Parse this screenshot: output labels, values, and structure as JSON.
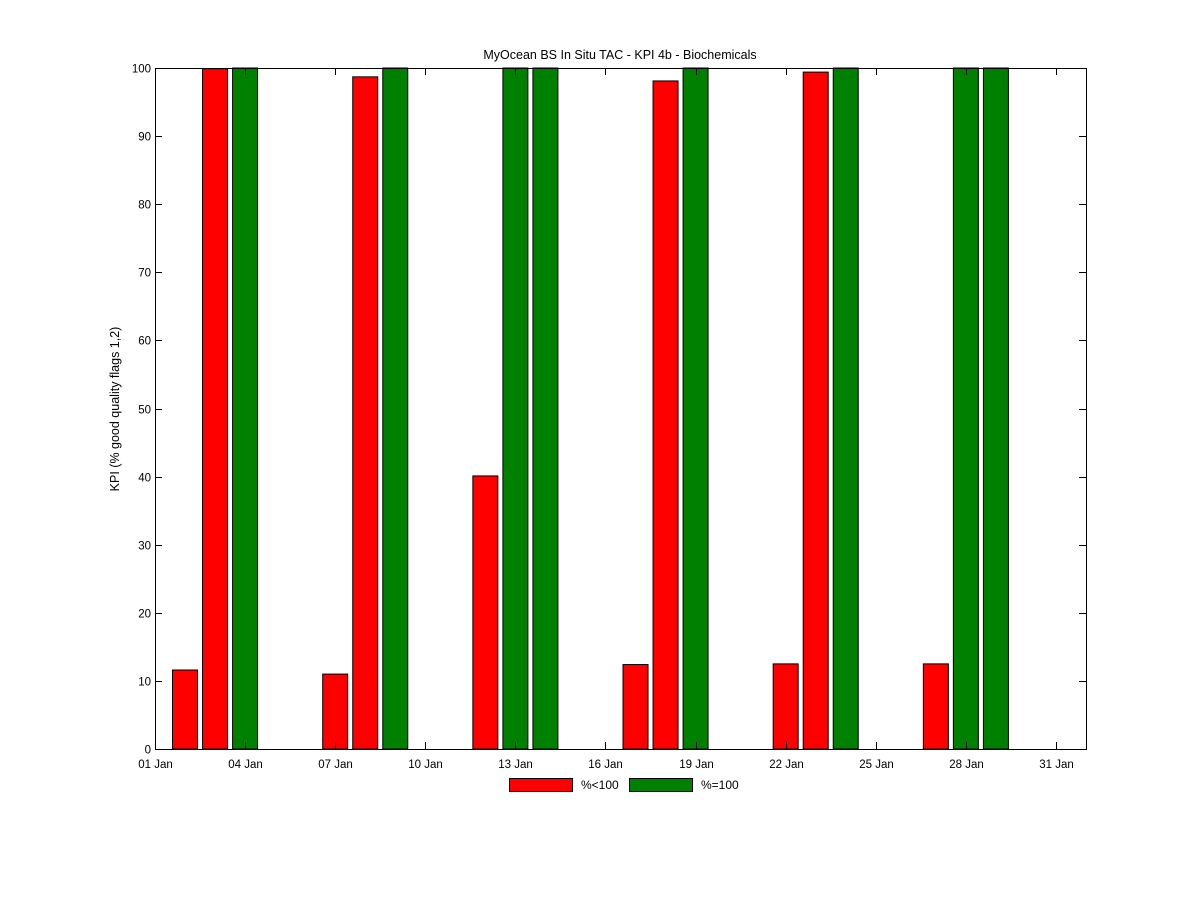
{
  "chart_data": {
    "type": "bar",
    "title": "MyOcean  BS In Situ TAC - KPI 4b - Biochemicals",
    "xlabel": "",
    "ylabel": "KPI (% good quality flags 1,2)",
    "ylim": [
      0,
      100
    ],
    "yticks": [
      0,
      10,
      20,
      30,
      40,
      50,
      60,
      70,
      80,
      90,
      100
    ],
    "xlim": [
      "2012-01-01",
      "2012-02-01"
    ],
    "xticks": [
      {
        "date": "2012-01-01",
        "label": "01 Jan"
      },
      {
        "date": "2012-01-04",
        "label": "04 Jan"
      },
      {
        "date": "2012-01-07",
        "label": "07 Jan"
      },
      {
        "date": "2012-01-10",
        "label": "10 Jan"
      },
      {
        "date": "2012-01-13",
        "label": "13 Jan"
      },
      {
        "date": "2012-01-16",
        "label": "16 Jan"
      },
      {
        "date": "2012-01-19",
        "label": "19 Jan"
      },
      {
        "date": "2012-01-22",
        "label": "22 Jan"
      },
      {
        "date": "2012-01-25",
        "label": "25 Jan"
      },
      {
        "date": "2012-01-28",
        "label": "28 Jan"
      },
      {
        "date": "2012-01-31",
        "label": "31 Jan"
      }
    ],
    "grid": false,
    "legend_position": "bottom",
    "series": [
      {
        "name": "%<100",
        "color": "#ff0000",
        "points": [
          {
            "date": "2012-01-02",
            "value": 11.6
          },
          {
            "date": "2012-01-03",
            "value": 99.9
          },
          {
            "date": "2012-01-07",
            "value": 11.0
          },
          {
            "date": "2012-01-08",
            "value": 98.7
          },
          {
            "date": "2012-01-12",
            "value": 40.1
          },
          {
            "date": "2012-01-17",
            "value": 12.4
          },
          {
            "date": "2012-01-18",
            "value": 98.1
          },
          {
            "date": "2012-01-22",
            "value": 12.5
          },
          {
            "date": "2012-01-23",
            "value": 99.4
          },
          {
            "date": "2012-01-27",
            "value": 12.5
          }
        ]
      },
      {
        "name": "%=100",
        "color": "#008000",
        "points": [
          {
            "date": "2012-01-04",
            "value": 100
          },
          {
            "date": "2012-01-09",
            "value": 100
          },
          {
            "date": "2012-01-13",
            "value": 100
          },
          {
            "date": "2012-01-14",
            "value": 100
          },
          {
            "date": "2012-01-19",
            "value": 100
          },
          {
            "date": "2012-01-24",
            "value": 100
          },
          {
            "date": "2012-01-28",
            "value": 100
          },
          {
            "date": "2012-01-29",
            "value": 100
          }
        ]
      }
    ]
  }
}
